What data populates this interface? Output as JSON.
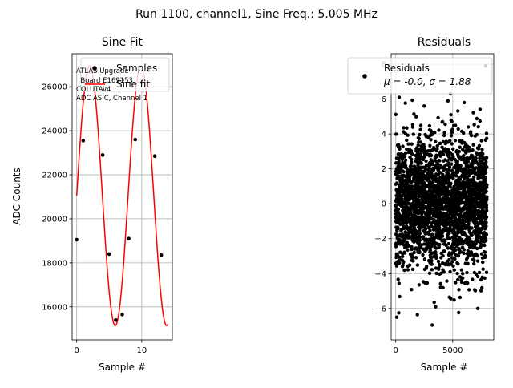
{
  "figure": {
    "suptitle": "Run 1100, channel1, Sine Freq.: 5.005 MHz"
  },
  "chart_data": [
    {
      "type": "scatter",
      "title": "Sine Fit",
      "xlabel": "Sample #",
      "ylabel": "ADC Counts",
      "xlim": [
        -0.7,
        14.7
      ],
      "ylim": [
        14500,
        27500
      ],
      "xticks": [
        0,
        10
      ],
      "yticks": [
        16000,
        18000,
        20000,
        22000,
        24000,
        26000
      ],
      "grid": true,
      "legend_position": "top-right",
      "annotation_lines": [
        "ATLAS Upgrade",
        "  Board E169153",
        "COLUTAv4",
        "ADC ASIC, Channel 1"
      ],
      "series": [
        {
          "name": "Samples",
          "kind": "points",
          "color": "#000000",
          "x": [
            0,
            1,
            2,
            3,
            4,
            5,
            6,
            7,
            8,
            9,
            10,
            11,
            12,
            13
          ],
          "y": [
            19050,
            23550,
            26150,
            26750,
            22900,
            18400,
            15400,
            15650,
            19100,
            23600,
            26200,
            26750,
            22850,
            18350
          ]
        },
        {
          "name": "Sine fit",
          "kind": "line",
          "color": "#ff0000",
          "model": {
            "offset": 21050,
            "amplitude": 5900,
            "period_samples": 7.9,
            "phase_rad": 0.0
          },
          "x_range": [
            0,
            14
          ]
        }
      ]
    },
    {
      "type": "scatter",
      "title": "Residuals",
      "xlabel": "Sample #",
      "xlim": [
        -400,
        8600
      ],
      "ylim": [
        -7.8,
        8.6
      ],
      "xticks": [
        0,
        5000
      ],
      "yticks": [
        -6,
        -4,
        -2,
        0,
        2,
        4,
        6,
        8
      ],
      "grid": true,
      "legend_position": "top-right",
      "series": [
        {
          "name": "Residuals",
          "legend_stats": "μ = -0.0, σ = 1.88",
          "color": "#000000",
          "n_points": 8000,
          "x_range": [
            0,
            8000
          ],
          "mean": 0.0,
          "std": 1.88,
          "outliers": [
            [
              3200,
              -6.95
            ],
            [
              4800,
              6.3
            ],
            [
              7900,
              7.9
            ],
            [
              300,
              6.1
            ],
            [
              7200,
              -6.0
            ],
            [
              2500,
              5.6
            ],
            [
              6000,
              5.8
            ],
            [
              3500,
              -5.9
            ]
          ]
        }
      ]
    }
  ]
}
